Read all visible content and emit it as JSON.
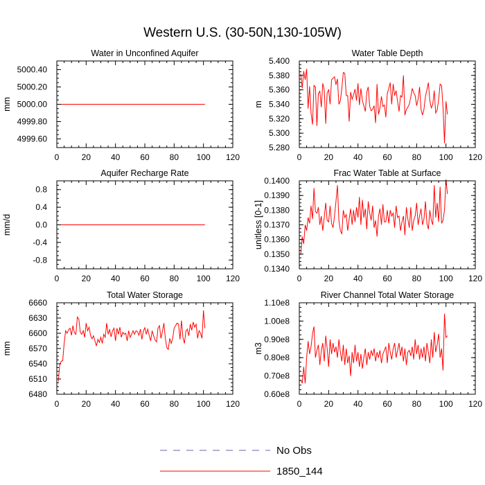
{
  "figure_title": "Western U.S. (30-50N,130-105W)",
  "colors": {
    "series": "#ff0000",
    "no_obs": "#6666aa",
    "axis": "#000000"
  },
  "legend": {
    "placement": "bottom-center",
    "items": [
      {
        "label": "No Obs",
        "style": "dashed",
        "color": "#6666aa"
      },
      {
        "label": "1850_144",
        "style": "solid",
        "color": "#ff0000"
      }
    ]
  },
  "chart_data": [
    {
      "type": "line",
      "title": "Water in Unconfined Aquifer",
      "ylabel": "mm",
      "xlim": [
        0,
        120
      ],
      "ylim": [
        4999.5,
        5000.5
      ],
      "xticks": [
        0,
        20,
        40,
        60,
        80,
        100,
        120
      ],
      "yticks": [
        4999.6,
        4999.8,
        5000.0,
        5000.2,
        5000.4
      ],
      "ytick_labels": [
        "4999.60",
        "4999.80",
        "5000.00",
        "5000.20",
        "5000.40"
      ],
      "series": [
        {
          "name": "1850_144",
          "x_start": 1,
          "values": [
            5000,
            5000,
            5000,
            5000,
            5000,
            5000,
            5000,
            5000,
            5000,
            5000,
            5000,
            5000,
            5000,
            5000,
            5000,
            5000,
            5000,
            5000,
            5000,
            5000,
            5000,
            5000,
            5000,
            5000,
            5000,
            5000,
            5000,
            5000,
            5000,
            5000,
            5000,
            5000,
            5000,
            5000,
            5000,
            5000,
            5000,
            5000,
            5000,
            5000,
            5000,
            5000,
            5000,
            5000,
            5000,
            5000,
            5000,
            5000,
            5000,
            5000,
            5000,
            5000,
            5000,
            5000,
            5000,
            5000,
            5000,
            5000,
            5000,
            5000,
            5000,
            5000,
            5000,
            5000,
            5000,
            5000,
            5000,
            5000,
            5000,
            5000,
            5000,
            5000,
            5000,
            5000,
            5000,
            5000,
            5000,
            5000,
            5000,
            5000,
            5000,
            5000,
            5000,
            5000,
            5000,
            5000,
            5000,
            5000,
            5000,
            5000,
            5000,
            5000,
            5000,
            5000,
            5000,
            5000,
            5000,
            5000,
            5000,
            5000,
            5000
          ]
        }
      ]
    },
    {
      "type": "line",
      "title": "Water Table Depth",
      "ylabel": "m",
      "xlim": [
        0,
        120
      ],
      "ylim": [
        5.28,
        5.4
      ],
      "xticks": [
        0,
        20,
        40,
        60,
        80,
        100,
        120
      ],
      "yticks": [
        5.28,
        5.3,
        5.32,
        5.34,
        5.36,
        5.38,
        5.4
      ],
      "ytick_labels": [
        "5.280",
        "5.300",
        "5.320",
        "5.340",
        "5.360",
        "5.380",
        "5.400"
      ],
      "series": [
        {
          "name": "1850_144",
          "x_start": 1,
          "values": [
            5.382,
            5.362,
            5.386,
            5.374,
            5.389,
            5.334,
            5.365,
            5.328,
            5.312,
            5.366,
            5.364,
            5.31,
            5.355,
            5.358,
            5.336,
            5.369,
            5.36,
            5.313,
            5.356,
            5.36,
            5.34,
            5.374,
            5.376,
            5.378,
            5.367,
            5.375,
            5.34,
            5.345,
            5.362,
            5.384,
            5.383,
            5.352,
            5.352,
            5.316,
            5.357,
            5.347,
            5.353,
            5.361,
            5.345,
            5.369,
            5.339,
            5.362,
            5.345,
            5.338,
            5.33,
            5.357,
            5.364,
            5.337,
            5.331,
            5.333,
            5.338,
            5.314,
            5.368,
            5.326,
            5.335,
            5.351,
            5.337,
            5.339,
            5.322,
            5.355,
            5.362,
            5.37,
            5.34,
            5.368,
            5.352,
            5.359,
            5.344,
            5.33,
            5.352,
            5.35,
            5.38,
            5.325,
            5.333,
            5.336,
            5.34,
            5.35,
            5.362,
            5.356,
            5.352,
            5.338,
            5.347,
            5.364,
            5.333,
            5.325,
            5.333,
            5.351,
            5.36,
            5.37,
            5.345,
            5.335,
            5.34,
            5.359,
            5.328,
            5.332,
            5.346,
            5.368,
            5.366,
            5.336,
            5.286,
            5.344,
            5.326
          ]
        }
      ]
    },
    {
      "type": "line",
      "title": "Aquifer Recharge Rate",
      "ylabel": "mm/d",
      "xlim": [
        0,
        120
      ],
      "ylim": [
        -1.0,
        1.0
      ],
      "xticks": [
        0,
        20,
        40,
        60,
        80,
        100,
        120
      ],
      "yticks": [
        -0.8,
        -0.4,
        0.0,
        0.4,
        0.8
      ],
      "ytick_labels": [
        "-0.8",
        "-0.4",
        "0.0",
        "0.4",
        "0.8"
      ],
      "series": [
        {
          "name": "1850_144",
          "x_start": 1,
          "values": [
            0,
            0,
            0,
            0,
            0,
            0,
            0,
            0,
            0,
            0,
            0,
            0,
            0,
            0,
            0,
            0,
            0,
            0,
            0,
            0,
            0,
            0,
            0,
            0,
            0,
            0,
            0,
            0,
            0,
            0,
            0,
            0,
            0,
            0,
            0,
            0,
            0,
            0,
            0,
            0,
            0,
            0,
            0,
            0,
            0,
            0,
            0,
            0,
            0,
            0,
            0,
            0,
            0,
            0,
            0,
            0,
            0,
            0,
            0,
            0,
            0,
            0,
            0,
            0,
            0,
            0,
            0,
            0,
            0,
            0,
            0,
            0,
            0,
            0,
            0,
            0,
            0,
            0,
            0,
            0,
            0,
            0,
            0,
            0,
            0,
            0,
            0,
            0,
            0,
            0,
            0,
            0,
            0,
            0,
            0,
            0,
            0,
            0,
            0,
            0,
            0
          ]
        }
      ]
    },
    {
      "type": "line",
      "title": "Frac Water Table at Surface",
      "ylabel": "unitless [0-1]",
      "xlim": [
        0,
        120
      ],
      "ylim": [
        0.134,
        0.14
      ],
      "xticks": [
        0,
        20,
        40,
        60,
        80,
        100,
        120
      ],
      "yticks": [
        0.134,
        0.135,
        0.136,
        0.137,
        0.138,
        0.139,
        0.14
      ],
      "ytick_labels": [
        "0.1340",
        "0.1350",
        "0.1360",
        "0.1370",
        "0.1380",
        "0.1390",
        "0.1400"
      ],
      "series": [
        {
          "name": "1850_144",
          "x_start": 1,
          "values": [
            0.135,
            0.1362,
            0.1357,
            0.137,
            0.1366,
            0.1375,
            0.1371,
            0.1383,
            0.1374,
            0.1395,
            0.1379,
            0.1378,
            0.1382,
            0.137,
            0.1376,
            0.1366,
            0.1375,
            0.1385,
            0.1373,
            0.1372,
            0.1383,
            0.1371,
            0.1368,
            0.1376,
            0.1386,
            0.1397,
            0.1373,
            0.1366,
            0.1364,
            0.138,
            0.1375,
            0.1377,
            0.1366,
            0.1374,
            0.1381,
            0.137,
            0.138,
            0.1372,
            0.1382,
            0.1375,
            0.1389,
            0.137,
            0.1387,
            0.1375,
            0.1381,
            0.1367,
            0.1386,
            0.1378,
            0.1373,
            0.1383,
            0.1368,
            0.1373,
            0.1362,
            0.1376,
            0.1381,
            0.137,
            0.1384,
            0.1372,
            0.1372,
            0.138,
            0.1371,
            0.138,
            0.1376,
            0.1378,
            0.1368,
            0.1383,
            0.1375,
            0.1376,
            0.1366,
            0.1372,
            0.1376,
            0.1363,
            0.1382,
            0.1374,
            0.1368,
            0.1382,
            0.1366,
            0.1373,
            0.1376,
            0.1385,
            0.137,
            0.1376,
            0.1381,
            0.137,
            0.1374,
            0.1386,
            0.1371,
            0.1367,
            0.138,
            0.1373,
            0.137,
            0.1397,
            0.1375,
            0.1385,
            0.1372,
            0.1396,
            0.1371,
            0.1373,
            0.138,
            0.1401,
            0.1391
          ]
        }
      ]
    },
    {
      "type": "line",
      "title": "Total Water Storage",
      "ylabel": "mm",
      "xlim": [
        0,
        120
      ],
      "ylim": [
        6480,
        6660
      ],
      "xticks": [
        0,
        20,
        40,
        60,
        80,
        100,
        120
      ],
      "yticks": [
        6480,
        6510,
        6540,
        6570,
        6600,
        6630,
        6660
      ],
      "ytick_labels": [
        "6480",
        "6510",
        "6540",
        "6570",
        "6600",
        "6630",
        "6660"
      ],
      "series": [
        {
          "name": "1850_144",
          "x_start": 1,
          "values": [
            6505,
            6538,
            6545,
            6546,
            6580,
            6605,
            6600,
            6607,
            6610,
            6596,
            6615,
            6601,
            6598,
            6632,
            6628,
            6602,
            6598,
            6605,
            6592,
            6620,
            6605,
            6612,
            6596,
            6589,
            6595,
            6585,
            6575,
            6588,
            6582,
            6592,
            6580,
            6598,
            6592,
            6620,
            6598,
            6607,
            6593,
            6605,
            6610,
            6585,
            6610,
            6598,
            6612,
            6592,
            6602,
            6598,
            6600,
            6585,
            6605,
            6592,
            6598,
            6605,
            6598,
            6605,
            6603,
            6596,
            6608,
            6588,
            6604,
            6611,
            6598,
            6608,
            6596,
            6585,
            6605,
            6595,
            6587,
            6583,
            6610,
            6615,
            6590,
            6603,
            6620,
            6590,
            6572,
            6568,
            6590,
            6580,
            6590,
            6610,
            6615,
            6620,
            6618,
            6588,
            6625,
            6592,
            6580,
            6604,
            6608,
            6595,
            6618,
            6606,
            6622,
            6612,
            6618,
            6590,
            6605,
            6600,
            6590,
            6645,
            6610
          ]
        }
      ]
    },
    {
      "type": "line",
      "title": "River Channel Total Water Storage",
      "ylabel": "m3",
      "xlim": [
        0,
        120
      ],
      "ylim": [
        60000000.0,
        110000000.0
      ],
      "xticks": [
        0,
        20,
        40,
        60,
        80,
        100,
        120
      ],
      "yticks": [
        60000000.0,
        70000000.0,
        80000000.0,
        90000000.0,
        100000000.0,
        110000000.0
      ],
      "ytick_labels": [
        "0.60e8",
        "0.70e8",
        "0.80e8",
        "0.90e8",
        "1.00e8",
        "1.10e8"
      ],
      "series": [
        {
          "name": "1850_144",
          "x_start": 1,
          "values": [
            68000000.0,
            66000000.0,
            75000000.0,
            66000000.0,
            80000000.0,
            89000000.0,
            82000000.0,
            86000000.0,
            93000000.0,
            97000000.0,
            80000000.0,
            84000000.0,
            87000000.0,
            76000000.0,
            84000000.0,
            88000000.0,
            78000000.0,
            92000000.0,
            85000000.0,
            75000000.0,
            90000000.0,
            82000000.0,
            88000000.0,
            83000000.0,
            86000000.0,
            80000000.0,
            90000000.0,
            83000000.0,
            78000000.0,
            87000000.0,
            76000000.0,
            85000000.0,
            77000000.0,
            81000000.0,
            70000000.0,
            83000000.0,
            77000000.0,
            87000000.0,
            78000000.0,
            83000000.0,
            75000000.0,
            82000000.0,
            74000000.0,
            80000000.0,
            85000000.0,
            76000000.0,
            83000000.0,
            79000000.0,
            84000000.0,
            81000000.0,
            85000000.0,
            78000000.0,
            83000000.0,
            80000000.0,
            84000000.0,
            77000000.0,
            82000000.0,
            84000000.0,
            86000000.0,
            77000000.0,
            88000000.0,
            83000000.0,
            79000000.0,
            85000000.0,
            88000000.0,
            80000000.0,
            84000000.0,
            88000000.0,
            81000000.0,
            86000000.0,
            78000000.0,
            85000000.0,
            76000000.0,
            83000000.0,
            84000000.0,
            81000000.0,
            86000000.0,
            79000000.0,
            90000000.0,
            82000000.0,
            87000000.0,
            79000000.0,
            85000000.0,
            80000000.0,
            86000000.0,
            78000000.0,
            88000000.0,
            83000000.0,
            77000000.0,
            90000000.0,
            80000000.0,
            94000000.0,
            83000000.0,
            87000000.0,
            93000000.0,
            80000000.0,
            85000000.0,
            73000000.0,
            104000000.0,
            91000000.0,
            92000000.0
          ]
        }
      ]
    }
  ]
}
